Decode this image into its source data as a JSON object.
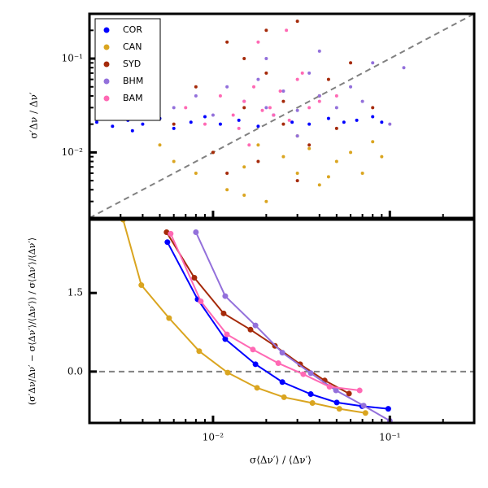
{
  "chart_data": [
    {
      "type": "scatter",
      "ylabel": "σ′Δν / Δν′",
      "xlog": true,
      "ylog": true,
      "xlim": [
        0.002,
        0.3
      ],
      "ylim": [
        0.002,
        0.3
      ],
      "xticks": [
        0.01,
        0.1
      ],
      "xtick_labels": false,
      "xminorticks": [
        0.003,
        0.004,
        0.005,
        0.006,
        0.007,
        0.008,
        0.009,
        0.02,
        0.03,
        0.04,
        0.05,
        0.06,
        0.07,
        0.08,
        0.09,
        0.2,
        0.3
      ],
      "yticks": [
        {
          "value": 0.1,
          "label": "10⁻¹"
        },
        {
          "value": 0.01,
          "label": "10⁻²"
        }
      ],
      "yminorticks": [
        0.003,
        0.004,
        0.005,
        0.006,
        0.007,
        0.008,
        0.009,
        0.02,
        0.03,
        0.04,
        0.05,
        0.06,
        0.07,
        0.08,
        0.09,
        0.2,
        0.3
      ],
      "diagonal": true,
      "legend": "upper left",
      "series": [
        {
          "name": "COR",
          "color": "#0000ff",
          "x": [
            0.0022,
            0.0027,
            0.0033,
            0.004,
            0.005,
            0.006,
            0.0075,
            0.009,
            0.011,
            0.014,
            0.018,
            0.022,
            0.028,
            0.035,
            0.045,
            0.055,
            0.065,
            0.08,
            0.09,
            0.0035
          ],
          "values": [
            0.021,
            0.019,
            0.022,
            0.02,
            0.023,
            0.018,
            0.021,
            0.024,
            0.02,
            0.022,
            0.019,
            0.025,
            0.021,
            0.02,
            0.023,
            0.021,
            0.022,
            0.024,
            0.021,
            0.017
          ]
        },
        {
          "name": "CAN",
          "color": "#daa520",
          "x": [
            0.005,
            0.006,
            0.008,
            0.01,
            0.012,
            0.015,
            0.018,
            0.02,
            0.025,
            0.03,
            0.035,
            0.04,
            0.05,
            0.06,
            0.07,
            0.08,
            0.09,
            0.015,
            0.03,
            0.045
          ],
          "values": [
            0.012,
            0.008,
            0.006,
            0.01,
            0.004,
            0.007,
            0.012,
            0.003,
            0.009,
            0.006,
            0.011,
            0.0045,
            0.008,
            0.01,
            0.006,
            0.013,
            0.009,
            0.0035,
            0.015,
            0.0055
          ]
        },
        {
          "name": "SYD",
          "color": "#a52a0a",
          "x": [
            0.006,
            0.008,
            0.01,
            0.012,
            0.015,
            0.018,
            0.02,
            0.025,
            0.03,
            0.035,
            0.04,
            0.05,
            0.06,
            0.08,
            0.012,
            0.02,
            0.03,
            0.045,
            0.015,
            0.025
          ],
          "values": [
            0.02,
            0.05,
            0.01,
            0.15,
            0.03,
            0.008,
            0.07,
            0.02,
            0.25,
            0.012,
            0.04,
            0.018,
            0.09,
            0.03,
            0.006,
            0.2,
            0.005,
            0.06,
            0.1,
            0.035
          ]
        },
        {
          "name": "BHM",
          "color": "#9370db",
          "x": [
            0.006,
            0.008,
            0.01,
            0.012,
            0.015,
            0.018,
            0.02,
            0.025,
            0.03,
            0.035,
            0.04,
            0.05,
            0.06,
            0.07,
            0.08,
            0.1,
            0.12,
            0.02,
            0.03,
            0.04
          ],
          "values": [
            0.03,
            0.04,
            0.025,
            0.05,
            0.035,
            0.06,
            0.03,
            0.045,
            0.028,
            0.07,
            0.04,
            0.03,
            0.05,
            0.035,
            0.09,
            0.02,
            0.08,
            0.1,
            0.015,
            0.12
          ]
        },
        {
          "name": "BAM",
          "color": "#ff69b4",
          "x": [
            0.007,
            0.009,
            0.011,
            0.013,
            0.015,
            0.017,
            0.019,
            0.021,
            0.024,
            0.027,
            0.03,
            0.035,
            0.04,
            0.05,
            0.014,
            0.018,
            0.022,
            0.026,
            0.032,
            0.016
          ],
          "values": [
            0.03,
            0.02,
            0.04,
            0.025,
            0.035,
            0.05,
            0.028,
            0.03,
            0.045,
            0.022,
            0.06,
            0.03,
            0.035,
            0.04,
            0.018,
            0.15,
            0.025,
            0.2,
            0.07,
            0.012
          ]
        }
      ]
    },
    {
      "type": "line",
      "xlabel": "σ⟨Δν′⟩ / ⟨Δν′⟩",
      "ylabel": "(σ′Δν/Δν′ − σ⟨Δν′⟩/⟨Δν′⟩) / σ⟨Δν′⟩/⟨Δν′⟩",
      "xlog": true,
      "xlim": [
        0.002,
        0.3
      ],
      "ylim": [
        -0.98,
        2.9
      ],
      "xticks": [
        {
          "value": 0.01,
          "label": "10⁻²"
        },
        {
          "value": 0.1,
          "label": "10⁻¹"
        }
      ],
      "xminorticks": [
        0.003,
        0.004,
        0.005,
        0.006,
        0.007,
        0.008,
        0.009,
        0.02,
        0.03,
        0.04,
        0.05,
        0.06,
        0.07,
        0.08,
        0.09,
        0.2,
        0.3
      ],
      "yticks": [
        1.5,
        {
          "value": 0,
          "label": "0.0"
        }
      ],
      "hline": 0,
      "series": [
        {
          "name": "COR",
          "color": "#0000ff",
          "x": [
            0.00552,
            0.00818,
            0.01172,
            0.01738,
            0.02466,
            0.0357,
            0.0501,
            0.0697,
            0.098
          ],
          "values": [
            2.47,
            1.38,
            0.62,
            0.14,
            -0.2,
            -0.43,
            -0.59,
            -0.66,
            -0.71
          ]
        },
        {
          "name": "CAN",
          "color": "#daa520",
          "x": [
            0.0031,
            0.00393,
            0.00564,
            0.00835,
            0.0121,
            0.01774,
            0.0252,
            0.0365,
            0.0518,
            0.0728
          ],
          "values": [
            2.9,
            1.65,
            1.02,
            0.39,
            -0.02,
            -0.31,
            -0.49,
            -0.6,
            -0.71,
            -0.79
          ]
        },
        {
          "name": "SYD",
          "color": "#a52a0a",
          "x": [
            0.00546,
            0.00784,
            0.01148,
            0.01629,
            0.0224,
            0.0311,
            0.0428,
            0.0588
          ],
          "values": [
            2.66,
            1.79,
            1.11,
            0.8,
            0.49,
            0.14,
            -0.17,
            -0.42
          ]
        },
        {
          "name": "BHM",
          "color": "#9370db",
          "x": [
            0.008,
            0.01172,
            0.01738,
            0.02466,
            0.0357,
            0.0496,
            0.0711,
            0.1
          ],
          "values": [
            2.66,
            1.44,
            0.88,
            0.36,
            -0.03,
            -0.36,
            -0.65,
            -0.94
          ]
        },
        {
          "name": "BAM",
          "color": "#ff69b4",
          "x": [
            0.00576,
            0.00853,
            0.01198,
            0.01681,
            0.0234,
            0.0324,
            0.0456,
            0.0675
          ],
          "values": [
            2.63,
            1.34,
            0.71,
            0.42,
            0.16,
            -0.05,
            -0.29,
            -0.36
          ]
        }
      ]
    }
  ]
}
